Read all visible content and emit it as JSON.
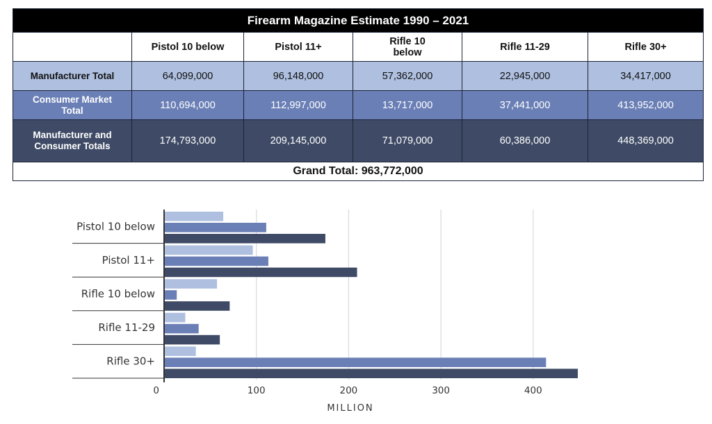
{
  "table": {
    "title": "Firearm Magazine Estimate 1990 – 2021",
    "columns": [
      "Pistol 10 below",
      "Pistol 11+",
      "Rifle 10 below",
      "Rifle 11-29",
      "Rifle 30+"
    ],
    "rows": [
      {
        "label": "Manufacturer Total",
        "values": [
          "64,099,000",
          "96,148,000",
          "57,362,000",
          "22,945,000",
          "34,417,000"
        ]
      },
      {
        "label": "Consumer Market Total",
        "values": [
          "110,694,000",
          "112,997,000",
          "13,717,000",
          "37,441,000",
          "413,952,000"
        ]
      },
      {
        "label": "Manufacturer and Consumer Totals",
        "values": [
          "174,793,000",
          "209,145,000",
          "71,079,000",
          "60,386,000",
          "448,369,000"
        ]
      }
    ],
    "grand_total": "Grand Total: 963,772,000"
  },
  "chart_data": {
    "type": "bar",
    "orientation": "horizontal",
    "categories": [
      "Pistol 10 below",
      "Pistol 11+",
      "Rifle 10 below",
      "Rifle 11-29",
      "Rifle 30+"
    ],
    "series": [
      {
        "name": "Manufacturer Total",
        "color": "#aebfdf",
        "values": [
          64.099,
          96.148,
          57.362,
          22.945,
          34.417
        ]
      },
      {
        "name": "Consumer Market Total",
        "color": "#6a7fb6",
        "values": [
          110.694,
          112.997,
          13.717,
          37.441,
          413.952
        ]
      },
      {
        "name": "Manufacturer and Consumer Totals",
        "color": "#3f4b66",
        "values": [
          174.793,
          209.145,
          71.079,
          60.386,
          448.369
        ]
      }
    ],
    "xticks": [
      0,
      100,
      200,
      300,
      400
    ],
    "xlim": [
      0,
      460
    ],
    "xlabel": "MILLION",
    "grid": true
  }
}
